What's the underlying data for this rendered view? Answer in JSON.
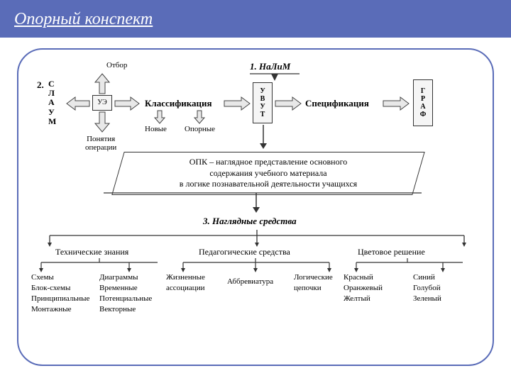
{
  "colors": {
    "header_bg": "#5a6cb8",
    "header_text": "#ffffff",
    "border": "#333333",
    "canvas_border": "#5a6cb8",
    "arrow_fill": "#e8e8e8",
    "arrow_stroke": "#444444",
    "text": "#000000"
  },
  "title": "Опорный конспект",
  "top": {
    "step1": "1. НаЛиМ",
    "step2": "2.",
    "slaum": [
      "С",
      "Л",
      "А",
      "У",
      "М"
    ],
    "ue_box": "УЭ",
    "otbor": "Отбор",
    "ponyatiya": "Понятия\nоперации",
    "klass": "Классификация",
    "novye": "Новые",
    "opornye": "Опорные",
    "uvut": [
      "У",
      "В",
      "У",
      "Т"
    ],
    "spec": "Спецификация",
    "graf": [
      "Г",
      "Р",
      "А",
      "Ф"
    ]
  },
  "opk": "ОПК – наглядное представление основного\nсодержания учебного материала\nв логике познавательной деятельности учащихся",
  "step3": "3. Наглядные средства",
  "bottom": {
    "headers": [
      "Технические знания",
      "Педагогические средства",
      "Цветовое решение"
    ],
    "col1a": [
      "Схемы",
      "Блок-схемы",
      "Принципиальные",
      "Монтажные"
    ],
    "col1b": [
      "Диаграммы",
      "Временные",
      "Потенциальные",
      "Векторные"
    ],
    "col2a": [
      "Жизненные",
      "ассоциации"
    ],
    "col2b": [
      "Аббревиатура"
    ],
    "col2c": [
      "Логические",
      "цепочки"
    ],
    "col3a": [
      "Красный",
      "Оранжевый",
      "Желтый"
    ],
    "col3b": [
      "Синий",
      "Голубой",
      "Зеленый"
    ]
  },
  "layout": {
    "canvas_radius": 36,
    "header_fontsize": 24,
    "body_fontsize": 12,
    "small_fontsize": 11
  }
}
